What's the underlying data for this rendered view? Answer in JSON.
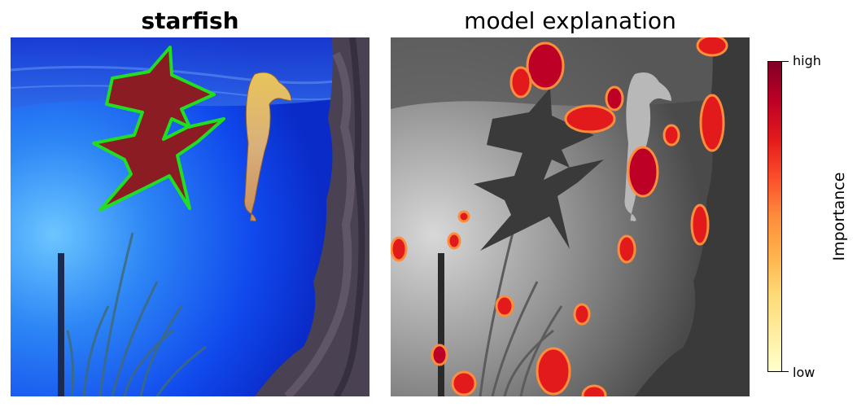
{
  "left_panel": {
    "title": "starfish"
  },
  "right_panel": {
    "title": "model explanation"
  },
  "colorbar": {
    "label": "Importance",
    "high_label": "high",
    "low_label": "low",
    "colormap": [
      "#800026",
      "#bd0026",
      "#e31a1c",
      "#fc4e2a",
      "#fd8d3c",
      "#feb24c",
      "#fed976",
      "#ffeda0",
      "#ffffcc"
    ]
  },
  "colors": {
    "outline": "#22dd22",
    "starfish_fill": "#8c1c24",
    "water": "#1450f0"
  }
}
